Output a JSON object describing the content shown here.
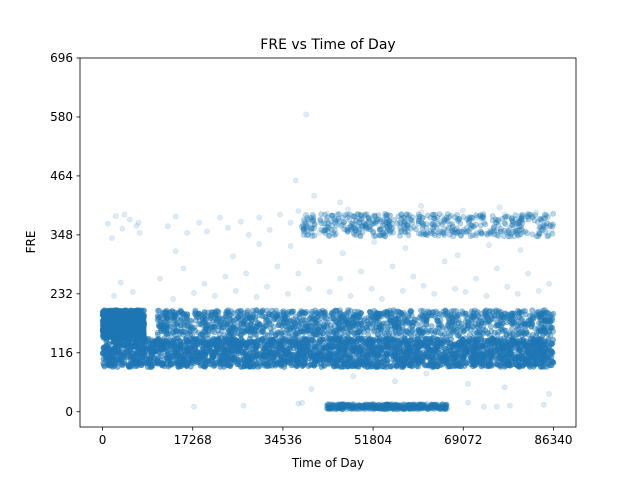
{
  "chart_data": {
    "type": "scatter",
    "title": "FRE vs Time of Day",
    "xlabel": "Time of Day",
    "ylabel": "FRE",
    "xlim": [
      -4317,
      90657
    ],
    "ylim": [
      -30,
      696
    ],
    "xticks": [
      0,
      17268,
      34536,
      51804,
      69072,
      86340
    ],
    "yticks": [
      0,
      116,
      232,
      348,
      464,
      580,
      696
    ],
    "grid": false,
    "color": "#1f77b4",
    "point_alpha": 0.15,
    "series": [
      {
        "values_note_free": true,
        "dense_bands": [
          {
            "x": [
              0,
              86340
            ],
            "y": [
              88,
              145
            ],
            "density": "very high"
          },
          {
            "x": [
              0,
              8000
            ],
            "y": [
              145,
              200
            ],
            "density": "high"
          },
          {
            "x": [
              10500,
              86340
            ],
            "y": [
              150,
              200
            ],
            "density": "high"
          },
          {
            "x": [
              38000,
              86340
            ],
            "y": [
              345,
              390
            ],
            "density": "medium"
          },
          {
            "x": [
              43000,
              66000
            ],
            "y": [
              5,
              15
            ],
            "density": "medium"
          }
        ],
        "points": [
          [
            1000,
            370
          ],
          [
            2500,
            385
          ],
          [
            3800,
            360
          ],
          [
            5200,
            378
          ],
          [
            6500,
            366
          ],
          [
            7100,
            352
          ],
          [
            1800,
            342
          ],
          [
            4200,
            388
          ],
          [
            6900,
            372
          ],
          [
            2200,
            228
          ],
          [
            3500,
            254
          ],
          [
            5800,
            236
          ],
          [
            12500,
            365
          ],
          [
            14000,
            384
          ],
          [
            16200,
            352
          ],
          [
            18500,
            372
          ],
          [
            20000,
            355
          ],
          [
            22500,
            382
          ],
          [
            24000,
            362
          ],
          [
            26500,
            374
          ],
          [
            28000,
            348
          ],
          [
            30000,
            382
          ],
          [
            32000,
            358
          ],
          [
            34000,
            388
          ],
          [
            36000,
            372
          ],
          [
            37500,
            395
          ],
          [
            38500,
            365
          ],
          [
            40000,
            380
          ],
          [
            41500,
            352
          ],
          [
            43000,
            390
          ],
          [
            45000,
            370
          ],
          [
            47000,
            398
          ],
          [
            49000,
            360
          ],
          [
            51000,
            382
          ],
          [
            53000,
            366
          ],
          [
            55000,
            386
          ],
          [
            57000,
            360
          ],
          [
            59000,
            378
          ],
          [
            61000,
            392
          ],
          [
            63000,
            370
          ],
          [
            65000,
            384
          ],
          [
            67000,
            362
          ],
          [
            69000,
            396
          ],
          [
            71000,
            374
          ],
          [
            73000,
            382
          ],
          [
            75000,
            360
          ],
          [
            77000,
            388
          ],
          [
            79000,
            368
          ],
          [
            81000,
            378
          ],
          [
            83000,
            392
          ],
          [
            85000,
            372
          ],
          [
            86000,
            356
          ],
          [
            39000,
            585
          ],
          [
            40500,
            425
          ],
          [
            37000,
            455
          ],
          [
            45500,
            412
          ],
          [
            61000,
            405
          ],
          [
            76000,
            402
          ],
          [
            11000,
            262
          ],
          [
            13500,
            222
          ],
          [
            15500,
            282
          ],
          [
            17500,
            234
          ],
          [
            19500,
            252
          ],
          [
            21500,
            228
          ],
          [
            23500,
            266
          ],
          [
            25500,
            238
          ],
          [
            27500,
            272
          ],
          [
            29500,
            226
          ],
          [
            31500,
            246
          ],
          [
            33500,
            286
          ],
          [
            35500,
            232
          ],
          [
            37500,
            272
          ],
          [
            39500,
            242
          ],
          [
            41500,
            296
          ],
          [
            43500,
            236
          ],
          [
            45500,
            262
          ],
          [
            47500,
            228
          ],
          [
            49500,
            276
          ],
          [
            51500,
            242
          ],
          [
            53500,
            222
          ],
          [
            55500,
            286
          ],
          [
            57500,
            238
          ],
          [
            59500,
            266
          ],
          [
            61500,
            248
          ],
          [
            63500,
            232
          ],
          [
            65500,
            296
          ],
          [
            67500,
            242
          ],
          [
            69500,
            236
          ],
          [
            71500,
            262
          ],
          [
            73500,
            228
          ],
          [
            75500,
            282
          ],
          [
            77500,
            246
          ],
          [
            79500,
            232
          ],
          [
            81500,
            272
          ],
          [
            83500,
            238
          ],
          [
            85500,
            252
          ],
          [
            14000,
            316
          ],
          [
            25000,
            306
          ],
          [
            36000,
            326
          ],
          [
            46000,
            312
          ],
          [
            58000,
            322
          ],
          [
            68000,
            308
          ],
          [
            80000,
            318
          ],
          [
            30000,
            330
          ],
          [
            52000,
            334
          ],
          [
            74000,
            328
          ],
          [
            17500,
            10
          ],
          [
            27000,
            12
          ],
          [
            37500,
            16
          ],
          [
            38200,
            18
          ],
          [
            70000,
            18
          ],
          [
            73000,
            10
          ],
          [
            75500,
            10
          ],
          [
            78000,
            12
          ],
          [
            84500,
            14
          ],
          [
            85500,
            35
          ],
          [
            40000,
            45
          ],
          [
            56000,
            60
          ],
          [
            70000,
            55
          ],
          [
            77000,
            48
          ],
          [
            48000,
            70
          ],
          [
            62000,
            75
          ]
        ]
      }
    ]
  }
}
